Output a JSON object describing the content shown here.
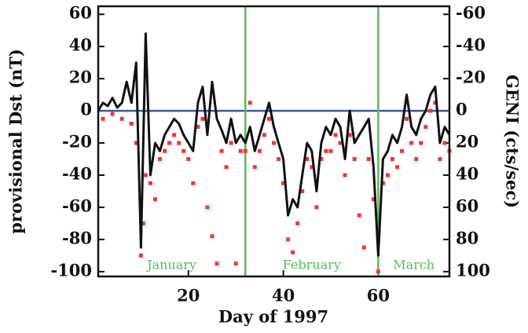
{
  "chart_data": {
    "type": "line",
    "xlabel": "Day of 1997",
    "ylabel": "provisional Dst (nT)",
    "y2label": "GENI (cts/sec)",
    "x": [
      1,
      2,
      3,
      4,
      5,
      6,
      7,
      8,
      9,
      10,
      11,
      12,
      13,
      14,
      15,
      16,
      17,
      18,
      19,
      20,
      21,
      22,
      23,
      24,
      25,
      26,
      27,
      28,
      29,
      30,
      31,
      32,
      33,
      34,
      35,
      36,
      37,
      38,
      39,
      40,
      41,
      42,
      43,
      44,
      45,
      46,
      47,
      48,
      49,
      50,
      51,
      52,
      53,
      54,
      55,
      56,
      57,
      58,
      59,
      60,
      61,
      62,
      63,
      64,
      65,
      66,
      67,
      68,
      69,
      70,
      71,
      72,
      73,
      74,
      75
    ],
    "series": [
      {
        "name": "Dst",
        "color": "#111111",
        "values": [
          0,
          5,
          3,
          8,
          2,
          5,
          18,
          5,
          30,
          -85,
          48,
          -40,
          -20,
          -25,
          -15,
          -10,
          -5,
          -8,
          -15,
          -20,
          -25,
          5,
          15,
          -15,
          18,
          -5,
          -12,
          -20,
          -5,
          -20,
          -15,
          -20,
          -10,
          -25,
          -15,
          -5,
          5,
          -10,
          -20,
          -30,
          -65,
          -55,
          -60,
          -40,
          -20,
          -25,
          -50,
          -20,
          -10,
          -15,
          -5,
          -10,
          -30,
          0,
          -20,
          -15,
          -10,
          -5,
          -35,
          -90,
          -30,
          -25,
          -15,
          -20,
          -10,
          10,
          -10,
          -15,
          -5,
          0,
          10,
          15,
          -20,
          -10,
          -15
        ]
      },
      {
        "name": "GENI",
        "color": "#f03535",
        "axis": "y2",
        "x": [
          2,
          4,
          6,
          8,
          9,
          10,
          10.5,
          11,
          12,
          13,
          14,
          15,
          16,
          17,
          18,
          19,
          20,
          21,
          22,
          23,
          24,
          25,
          26,
          27,
          28,
          29,
          30,
          31,
          32,
          33,
          34,
          35,
          36,
          37,
          38,
          39,
          40,
          41,
          42,
          43,
          44,
          45,
          46,
          47,
          48,
          49,
          50,
          51,
          52,
          53,
          54,
          55,
          56,
          57,
          58,
          59,
          60,
          61,
          62,
          63,
          64,
          65,
          66,
          67,
          68,
          69,
          70,
          71,
          72,
          73,
          74,
          75
        ],
        "values": [
          5,
          2,
          5,
          8,
          20,
          90,
          70,
          40,
          45,
          55,
          30,
          25,
          20,
          15,
          20,
          25,
          30,
          45,
          10,
          5,
          60,
          78,
          95,
          25,
          35,
          20,
          95,
          25,
          25,
          -5,
          35,
          25,
          15,
          5,
          20,
          30,
          45,
          80,
          88,
          70,
          50,
          30,
          35,
          60,
          30,
          25,
          25,
          15,
          20,
          40,
          15,
          30,
          65,
          85,
          30,
          55,
          100,
          45,
          40,
          30,
          35,
          25,
          5,
          20,
          30,
          20,
          10,
          0,
          -5,
          30,
          20,
          25
        ]
      }
    ],
    "xlim": [
      1,
      75
    ],
    "xticks": [
      20,
      40,
      60
    ],
    "ylim": [
      -103,
      65
    ],
    "yticks": [
      -100,
      -80,
      -60,
      -40,
      -20,
      0,
      20,
      40,
      60
    ],
    "y2lim": [
      -65,
      103
    ],
    "y2ticks": [
      -60,
      -40,
      -20,
      0,
      20,
      40,
      60,
      80,
      100
    ],
    "y2_inverted": true,
    "vlines": [
      32,
      60
    ],
    "vline_color": "#5cb85c",
    "hlines": [
      0
    ],
    "hline_color": "#3a5a9a",
    "annotations": [
      "January",
      "February",
      "March"
    ]
  }
}
